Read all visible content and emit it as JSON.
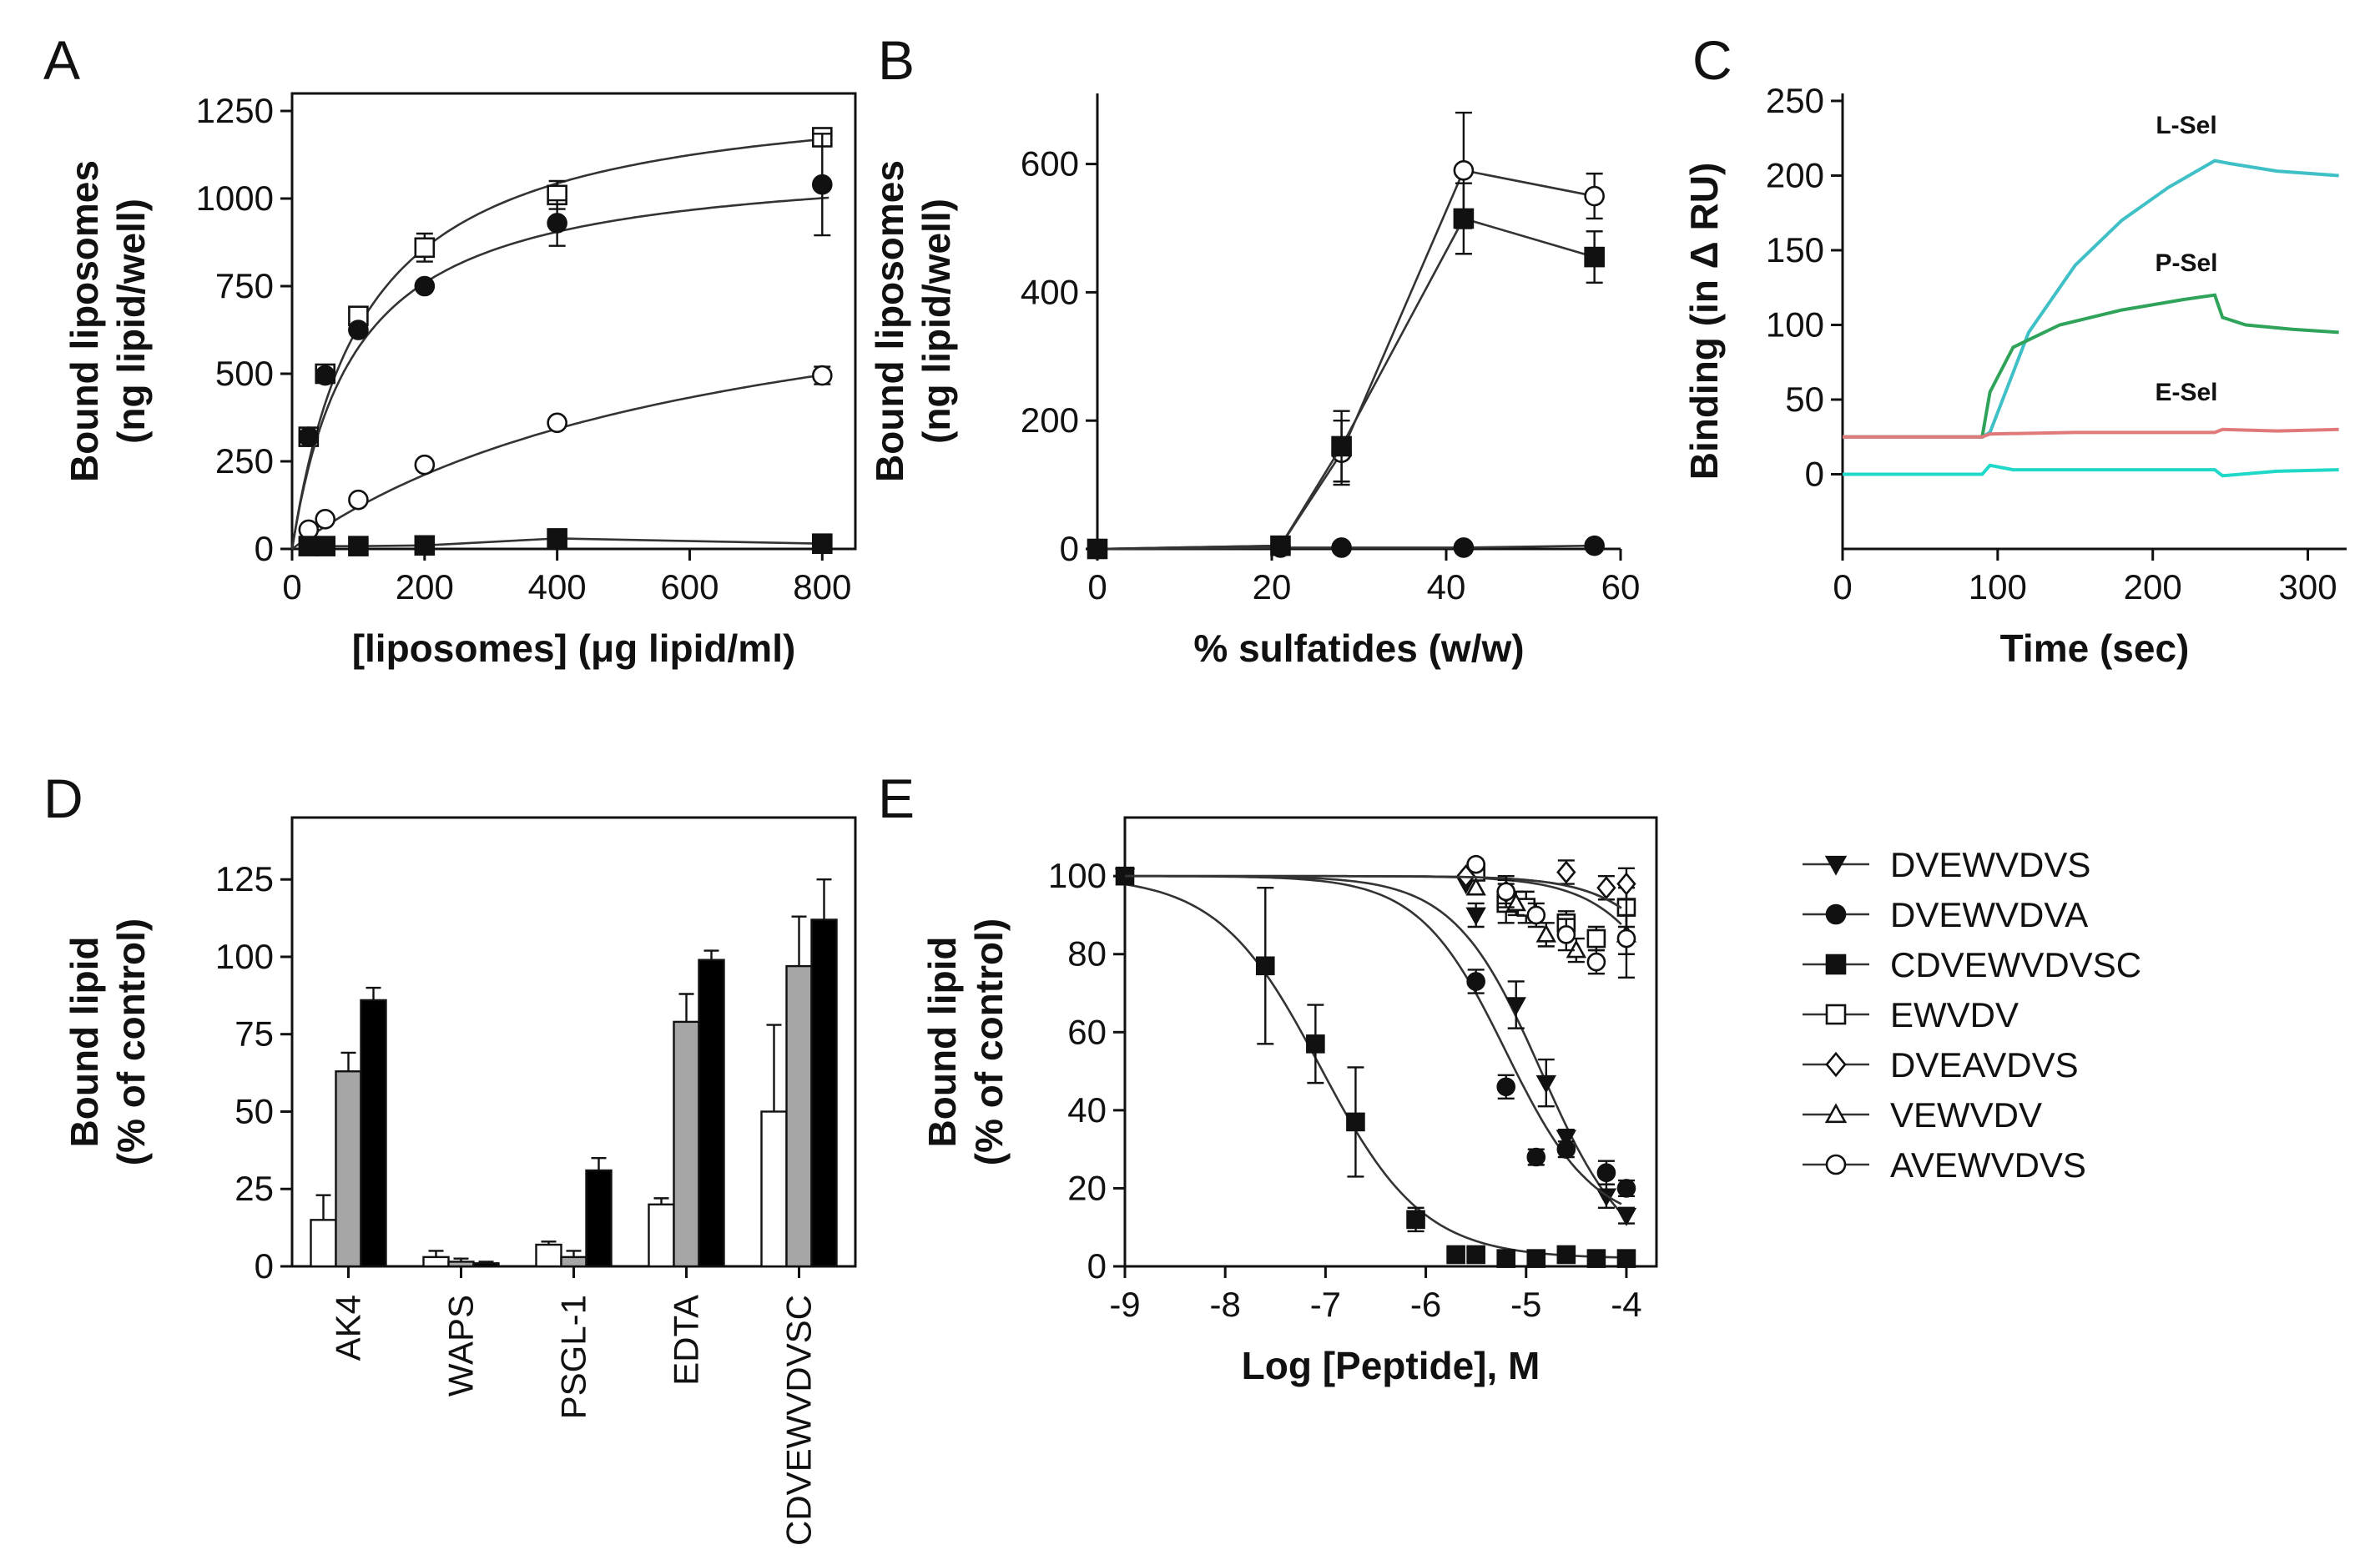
{
  "colors": {
    "trace_L": "#3ec0c6",
    "trace_P": "#2fa35a",
    "trace_E": "#e07a7a",
    "trace_ref": "#20d8c8",
    "bar_white": "#ffffff",
    "bar_gray": "#a6a6a6",
    "bar_black": "#000000"
  },
  "chart_data": [
    {
      "panel": "A",
      "type": "scatter",
      "xlabel": "[liposomes] (μg lipid/ml)",
      "ylabel": [
        "Bound liposomes",
        "(ng lipid/well)"
      ],
      "xlim": [
        0,
        850
      ],
      "ylim": [
        0,
        1300
      ],
      "xticks": [
        0,
        200,
        400,
        600,
        800
      ],
      "yticks": [
        0,
        250,
        500,
        750,
        1000,
        1250
      ],
      "series": [
        {
          "name": "open squares",
          "marker": "square-open",
          "x": [
            25,
            50,
            100,
            200,
            400,
            800
          ],
          "y": [
            320,
            500,
            665,
            860,
            1010,
            1175
          ],
          "err": [
            0,
            0,
            0,
            40,
            40,
            0
          ],
          "fit": {
            "vmax": 1330,
            "k": 110
          }
        },
        {
          "name": "filled circles",
          "marker": "circle-filled",
          "x": [
            25,
            50,
            100,
            200,
            400,
            800
          ],
          "y": [
            320,
            495,
            625,
            750,
            930,
            1040
          ],
          "err": [
            0,
            0,
            0,
            0,
            65,
            145
          ],
          "fit": {
            "vmax": 1120,
            "k": 95
          }
        },
        {
          "name": "open circles",
          "marker": "circle-open",
          "x": [
            25,
            50,
            100,
            200,
            400,
            800
          ],
          "y": [
            55,
            85,
            140,
            240,
            360,
            495
          ],
          "err": [
            0,
            0,
            0,
            0,
            0,
            25
          ],
          "fit": {
            "vmax": 900,
            "k": 650
          }
        },
        {
          "name": "filled squares",
          "marker": "square-filled",
          "x": [
            25,
            50,
            100,
            200,
            400,
            800
          ],
          "y": [
            8,
            8,
            8,
            10,
            30,
            15
          ],
          "err": [
            0,
            0,
            0,
            0,
            0,
            0
          ],
          "fit": null
        }
      ]
    },
    {
      "panel": "B",
      "type": "line",
      "xlabel": "% sulfatides (w/w)",
      "ylabel": [
        "Bound liposomes",
        "(ng lipid/well)"
      ],
      "xlim": [
        0,
        60
      ],
      "ylim": [
        0,
        710
      ],
      "xticks": [
        0,
        20,
        40,
        60
      ],
      "yticks": [
        0,
        200,
        400,
        600
      ],
      "series": [
        {
          "name": "open circles",
          "marker": "circle-open",
          "x": [
            0,
            21,
            28,
            42,
            57
          ],
          "y": [
            0,
            5,
            150,
            590,
            550
          ],
          "err": [
            0,
            0,
            50,
            90,
            35
          ]
        },
        {
          "name": "filled squares",
          "marker": "square-filled",
          "x": [
            0,
            21,
            28,
            42,
            57
          ],
          "y": [
            0,
            5,
            160,
            515,
            455
          ],
          "err": [
            0,
            0,
            55,
            55,
            40
          ]
        },
        {
          "name": "filled circles",
          "marker": "circle-filled",
          "x": [
            0,
            21,
            28,
            42,
            57
          ],
          "y": [
            0,
            2,
            2,
            2,
            5
          ],
          "err": [
            0,
            0,
            0,
            0,
            0
          ]
        }
      ]
    },
    {
      "panel": "C",
      "type": "line",
      "xlabel": "Time (sec)",
      "ylabel": [
        "Binding (in Δ RU)"
      ],
      "xlim": [
        0,
        325
      ],
      "ylim": [
        -50,
        255
      ],
      "xticks": [
        0,
        100,
        200,
        300
      ],
      "yticks": [
        0,
        50,
        100,
        150,
        200,
        250
      ],
      "series": [
        {
          "name": "L-Sel",
          "colorKey": "trace_L",
          "x": [
            0,
            90,
            95,
            120,
            150,
            180,
            210,
            240,
            250,
            280,
            320
          ],
          "y": [
            25,
            25,
            28,
            95,
            140,
            170,
            192,
            210,
            208,
            203,
            200
          ]
        },
        {
          "name": "P-Sel",
          "colorKey": "trace_P",
          "x": [
            0,
            90,
            95,
            110,
            140,
            180,
            220,
            240,
            245,
            260,
            290,
            320
          ],
          "y": [
            25,
            25,
            55,
            85,
            100,
            110,
            117,
            120,
            105,
            100,
            97,
            95
          ]
        },
        {
          "name": "E-Sel",
          "colorKey": "trace_E",
          "x": [
            0,
            90,
            95,
            150,
            200,
            240,
            245,
            280,
            320
          ],
          "y": [
            25,
            25,
            27,
            28,
            28,
            28,
            30,
            29,
            30
          ]
        },
        {
          "name": "reference",
          "colorKey": "trace_ref",
          "x": [
            0,
            90,
            95,
            110,
            150,
            200,
            240,
            245,
            280,
            320
          ],
          "y": [
            0,
            0,
            6,
            3,
            3,
            3,
            3,
            -1,
            2,
            3
          ]
        }
      ],
      "labels": [
        "L-Sel",
        "P-Sel",
        "E-Sel"
      ]
    },
    {
      "panel": "D",
      "type": "bar",
      "ylabel": [
        "Bound lipid",
        "(% of control)"
      ],
      "ylim": [
        0,
        145
      ],
      "yticks": [
        0,
        25,
        50,
        75,
        100,
        125
      ],
      "categories": [
        "AK4",
        "WAPS",
        "PSGL-1",
        "EDTA",
        "CDVEWVDVSC"
      ],
      "series": [
        {
          "name": "white",
          "colorKey": "bar_white",
          "values": [
            15,
            3,
            7,
            20,
            50
          ],
          "err": [
            8,
            2,
            1,
            2,
            28
          ]
        },
        {
          "name": "gray",
          "colorKey": "bar_gray",
          "values": [
            63,
            1.5,
            3,
            79,
            97
          ],
          "err": [
            6,
            1,
            2,
            9,
            16
          ]
        },
        {
          "name": "black",
          "colorKey": "bar_black",
          "values": [
            86,
            1,
            31,
            99,
            112
          ],
          "err": [
            4,
            0.5,
            4,
            3,
            13
          ]
        }
      ]
    },
    {
      "panel": "E",
      "type": "scatter",
      "xlabel": "Log [Peptide], M",
      "ylabel": [
        "Bound lipid",
        "(% of control)"
      ],
      "xlim": [
        -9,
        -3.7
      ],
      "ylim": [
        0,
        115
      ],
      "xticks": [
        -9,
        -8,
        -7,
        -6,
        -5,
        -4
      ],
      "yticks": [
        0,
        20,
        40,
        60,
        80,
        100
      ],
      "series": [
        {
          "name": "DVEWVDVS",
          "marker": "triangle-down-filled",
          "x": [
            -9,
            -5.6,
            -5.5,
            -5.1,
            -4.8,
            -4.6,
            -4.2,
            -4.0
          ],
          "y": [
            100,
            98,
            90,
            67,
            47,
            33,
            18,
            13
          ],
          "err": [
            0,
            0,
            3,
            6,
            6,
            2,
            3,
            2
          ],
          "fit": {
            "top": 100,
            "bottom": 0,
            "logEC50": -4.85,
            "hill": 1
          }
        },
        {
          "name": "DVEWVDVA",
          "marker": "circle-filled",
          "x": [
            -9,
            -5.5,
            -5.2,
            -4.9,
            -4.6,
            -4.2,
            -4.0
          ],
          "y": [
            100,
            73,
            46,
            28,
            30,
            24,
            20
          ],
          "err": [
            0,
            3,
            3,
            2,
            2,
            3,
            2
          ],
          "fit": {
            "top": 100,
            "bottom": 10,
            "logEC50": -5.2,
            "hill": 1
          }
        },
        {
          "name": "CDVEWVDVSC",
          "marker": "square-filled",
          "x": [
            -9,
            -7.6,
            -7.1,
            -6.7,
            -6.1,
            -5.7,
            -5.5,
            -5.2,
            -4.9,
            -4.6,
            -4.3,
            -4.0
          ],
          "y": [
            100,
            77,
            57,
            37,
            12,
            3,
            3,
            2,
            2,
            3,
            2,
            2
          ],
          "err": [
            0,
            20,
            10,
            14,
            3,
            1,
            0,
            0,
            0,
            0,
            0,
            0
          ],
          "fit": {
            "top": 100,
            "bottom": 2,
            "logEC50": -7.05,
            "hill": 0.85
          }
        },
        {
          "name": "EWVDV",
          "marker": "square-open",
          "x": [
            -5.5,
            -5.2,
            -5.0,
            -4.6,
            -4.3,
            -4.0
          ],
          "y": [
            101,
            93,
            92,
            88,
            84,
            92
          ],
          "err": [
            0,
            5,
            4,
            3,
            3,
            5
          ],
          "fit": {
            "top": 100,
            "bottom": 0,
            "logEC50": -3.2,
            "hill": 1
          }
        },
        {
          "name": "DVEAVDVS",
          "marker": "diamond-open",
          "x": [
            -5.6,
            -5.2,
            -4.6,
            -4.2,
            -4.0
          ],
          "y": [
            100,
            96,
            101,
            97,
            98
          ],
          "err": [
            0,
            3,
            3,
            3,
            4
          ],
          "fit": null
        },
        {
          "name": "VEWVDV",
          "marker": "triangle-up-open",
          "x": [
            -5.5,
            -5.1,
            -4.8,
            -4.5,
            -4.0
          ],
          "y": [
            97,
            93,
            85,
            81,
            85
          ],
          "err": [
            0,
            3,
            3,
            3,
            5
          ],
          "fit": {
            "top": 100,
            "bottom": 0,
            "logEC50": -3.0,
            "hill": 1
          }
        },
        {
          "name": "AVEWVDVS",
          "marker": "circle-open",
          "x": [
            -5.5,
            -5.2,
            -4.9,
            -4.6,
            -4.3,
            -4.0
          ],
          "y": [
            103,
            96,
            90,
            85,
            78,
            84
          ],
          "err": [
            0,
            4,
            3,
            4,
            3,
            10
          ],
          "fit": {
            "top": 100,
            "bottom": 0,
            "logEC50": -3.0,
            "hill": 1
          }
        }
      ]
    }
  ]
}
